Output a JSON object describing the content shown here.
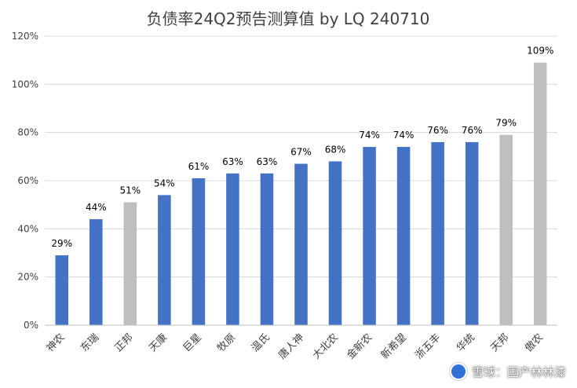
{
  "chart_data": {
    "type": "bar",
    "title": "负债率24Q2预告测算值 by LQ 240710",
    "categories": [
      "神农",
      "东瑞",
      "正邦",
      "天康",
      "巨星",
      "牧原",
      "温氏",
      "唐人神",
      "大北农",
      "金新农",
      "新希望",
      "浙五丰",
      "华统",
      "天邦",
      "傲农"
    ],
    "values": [
      29,
      44,
      51,
      54,
      61,
      63,
      63,
      67,
      68,
      74,
      74,
      76,
      76,
      79,
      109
    ],
    "value_labels": [
      "29%",
      "44%",
      "51%",
      "54%",
      "61%",
      "63%",
      "63%",
      "67%",
      "68%",
      "74%",
      "74%",
      "76%",
      "76%",
      "79%",
      "109%"
    ],
    "highlight": [
      false,
      false,
      true,
      false,
      false,
      false,
      false,
      false,
      false,
      false,
      false,
      false,
      false,
      true,
      true
    ],
    "colors": {
      "bar": "#4472C4",
      "highlight": "#BFBFBF",
      "grid": "#D9D9D9",
      "text": "#404040"
    },
    "ylim": [
      0,
      120
    ],
    "yticks": [
      0,
      20,
      40,
      60,
      80,
      100,
      120
    ],
    "ytick_labels": [
      "0%",
      "20%",
      "40%",
      "60%",
      "80%",
      "100%",
      "120%"
    ],
    "xlabel": "",
    "ylabel": "",
    "grid": true
  },
  "watermark": {
    "text": "雪球：国产林林漆",
    "icon": "xueqiu-logo-icon"
  }
}
